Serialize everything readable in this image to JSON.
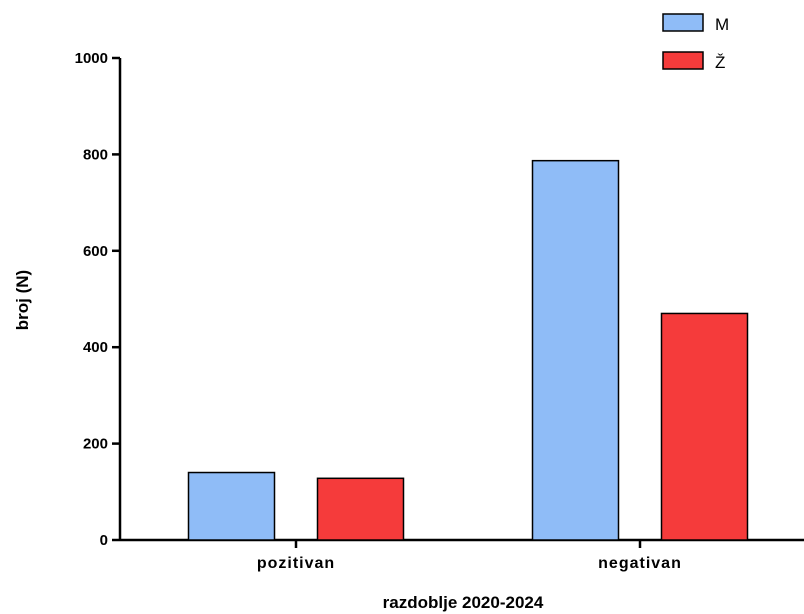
{
  "chart_data": {
    "type": "bar",
    "categories": [
      "pozitivan",
      "negativan"
    ],
    "series": [
      {
        "name": "M",
        "values": [
          140,
          787
        ],
        "color": "#8fbcf7"
      },
      {
        "name": "Ž",
        "values": [
          128,
          470
        ],
        "color": "#f53b3b"
      }
    ],
    "xlabel": "razdoblje 2020-2024",
    "ylabel": "broj (N)",
    "ylim": [
      0,
      1000
    ],
    "yticks": [
      0,
      200,
      400,
      600,
      800,
      1000
    ],
    "grid": false,
    "legend": "top-right"
  }
}
